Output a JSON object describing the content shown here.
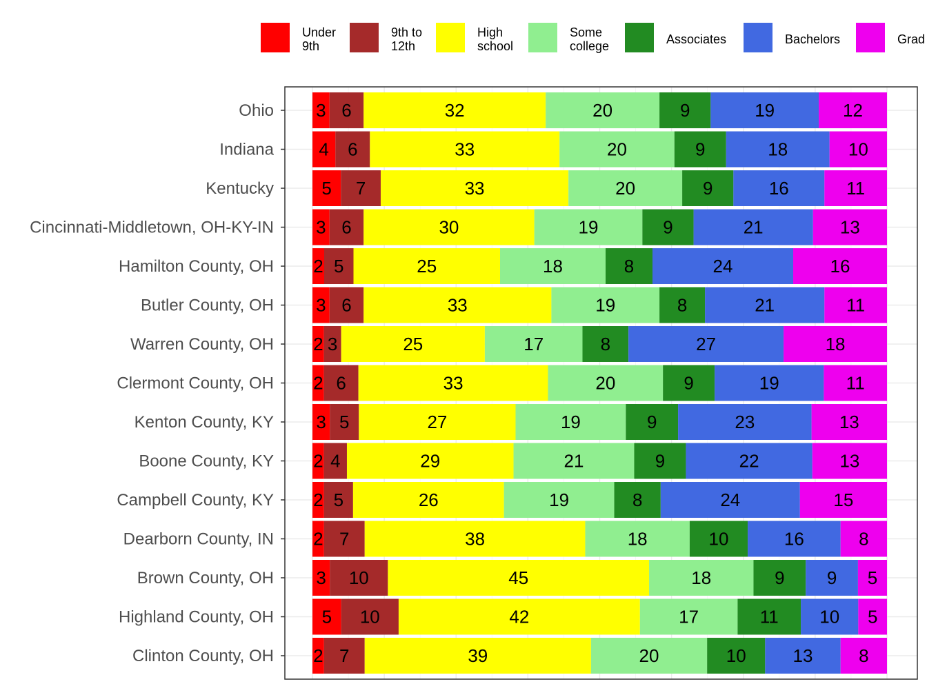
{
  "chart_data": {
    "type": "bar",
    "orientation": "horizontal",
    "stacked": "percent",
    "title": "",
    "xlabel": "",
    "ylabel": "",
    "xlim": [
      0,
      100
    ],
    "grid": true,
    "legend_position": "top",
    "categories": [
      "Ohio",
      "Indiana",
      "Kentucky",
      "Cincinnati-Middletown, OH-KY-IN",
      "Hamilton County, OH",
      "Butler County, OH",
      "Warren County, OH",
      "Clermont County, OH",
      "Kenton County, KY",
      "Boone County, KY",
      "Campbell County, KY",
      "Dearborn County, IN",
      "Brown County, OH",
      "Highland County, OH",
      "Clinton County, OH"
    ],
    "series": [
      {
        "name": "Under 9th",
        "legend_lines": [
          "Under",
          "9th"
        ],
        "color": "#ff0000",
        "values": [
          3,
          4,
          5,
          3,
          2,
          3,
          2,
          2,
          3,
          2,
          2,
          2,
          3,
          5,
          2
        ]
      },
      {
        "name": "9th to 12th",
        "legend_lines": [
          "9th to",
          "12th"
        ],
        "color": "#a52a2a",
        "values": [
          6,
          6,
          7,
          6,
          5,
          6,
          3,
          6,
          5,
          4,
          5,
          7,
          10,
          10,
          7
        ]
      },
      {
        "name": "High school",
        "legend_lines": [
          "High",
          "school"
        ],
        "color": "#ffff00",
        "values": [
          32,
          33,
          33,
          30,
          25,
          33,
          25,
          33,
          27,
          29,
          26,
          38,
          45,
          42,
          39
        ]
      },
      {
        "name": "Some college",
        "legend_lines": [
          "Some",
          "college"
        ],
        "color": "#90ee90",
        "values": [
          20,
          20,
          20,
          19,
          18,
          19,
          17,
          20,
          19,
          21,
          19,
          18,
          18,
          17,
          20
        ]
      },
      {
        "name": "Associates",
        "legend_lines": [
          "Associates"
        ],
        "color": "#228b22",
        "values": [
          9,
          9,
          9,
          9,
          8,
          8,
          8,
          9,
          9,
          9,
          8,
          10,
          9,
          11,
          10
        ]
      },
      {
        "name": "Bachelors",
        "legend_lines": [
          "Bachelors"
        ],
        "color": "#4169e1",
        "values": [
          19,
          18,
          16,
          21,
          24,
          21,
          27,
          19,
          23,
          22,
          24,
          16,
          9,
          10,
          13
        ]
      },
      {
        "name": "Grad",
        "legend_lines": [
          "Grad"
        ],
        "color": "#ee00ee",
        "values": [
          12,
          10,
          11,
          13,
          16,
          11,
          18,
          11,
          13,
          13,
          15,
          8,
          5,
          5,
          8
        ]
      }
    ]
  }
}
